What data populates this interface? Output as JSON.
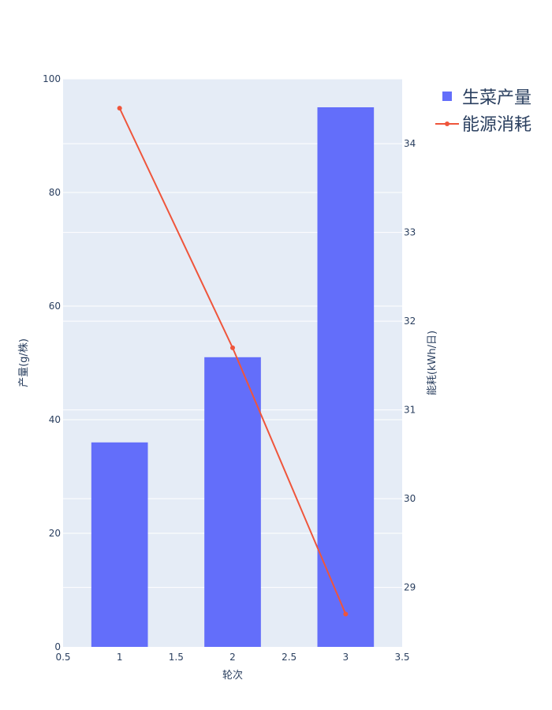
{
  "chart_data": {
    "type": "bar",
    "x": [
      1,
      2,
      3
    ],
    "series": [
      {
        "name": "生菜产量",
        "type": "bar",
        "axis": "left",
        "values": [
          36,
          51,
          95
        ]
      },
      {
        "name": "能源消耗",
        "type": "line",
        "axis": "right",
        "values": [
          34.4,
          31.7,
          28.7
        ]
      }
    ],
    "xlabel": "轮次",
    "ylabel": "产量(g/株)",
    "y2label": "能耗(kWh/日)",
    "xlim": [
      0.5,
      3.5
    ],
    "ylim": [
      0,
      100
    ],
    "y2lim": [
      28.33,
      34.73
    ],
    "xticks": [
      "0.5",
      "1",
      "1.5",
      "2",
      "2.5",
      "3",
      "3.5"
    ],
    "yticks": [
      "0",
      "20",
      "40",
      "60",
      "80",
      "100"
    ],
    "y2ticks": [
      "29",
      "30",
      "31",
      "32",
      "33",
      "34"
    ],
    "grid": true,
    "legend": "top-right",
    "colors": {
      "bar": "#636efa",
      "line": "#ef553b",
      "plot_bg": "#e5ecf6",
      "grid": "#ffffff",
      "text": "#2a3f5f"
    }
  }
}
